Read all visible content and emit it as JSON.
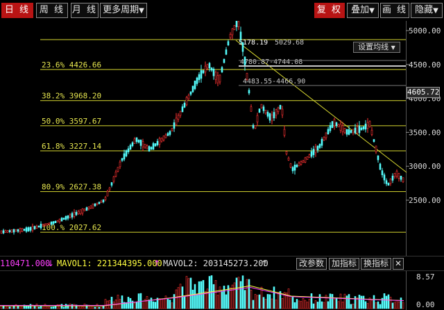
{
  "toolbar": {
    "daily": "日 线",
    "weekly": "周 线",
    "monthly": "月 线",
    "more_periods": "更多周期",
    "adjust": "复 权",
    "overlay": "叠加",
    "draw_line": "画 线",
    "hide": "隐藏"
  },
  "chart": {
    "setting_ma": "设置均线",
    "current_price": "4605.72",
    "y_axis_ticks": [
      "5000.00",
      "4500.00",
      "4000.00",
      "3500.00",
      "3000.00",
      "2500.00"
    ],
    "fib_levels": [
      {
        "label": "23.6% 4426.66"
      },
      {
        "label": "38.2% 3968.20"
      },
      {
        "label": "50.0% 3597.67"
      },
      {
        "label": "61.8% 3227.14"
      },
      {
        "label": "80.9% 2627.38"
      },
      {
        "label": "100.% 2027.62"
      }
    ],
    "annotations": [
      "5178.19",
      "5029.68",
      "4780.87-4744.08",
      "4483.55-4466.90"
    ],
    "colors": {
      "up": "#ff3232",
      "down": "#54fcfc",
      "fib": "#d8d830",
      "bg": "#000000"
    }
  },
  "volume": {
    "vol": "110471.000",
    "vol_arrow": "↓",
    "mavol1": "MAVOL1: 221344395.000",
    "mavol1_arrow": "↑",
    "mavol2": "MAVOL2: 203145273.200",
    "mavol2_arrow": "↑",
    "btn_params": "改参数",
    "btn_add": "加指标",
    "btn_switch": "换指标",
    "btn_close": "✕",
    "axis_top": "8.57",
    "axis_bottom": "0.00"
  }
}
